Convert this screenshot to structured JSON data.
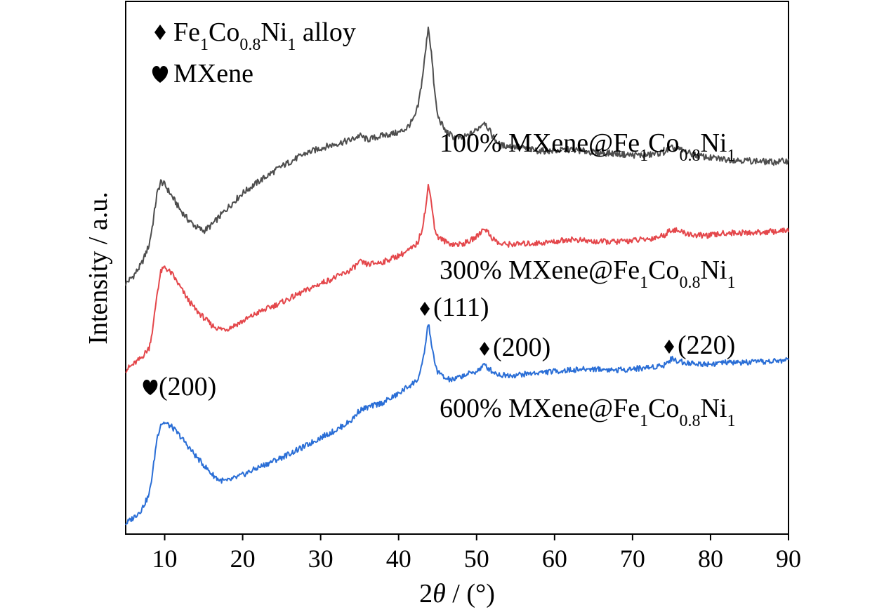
{
  "chart_data": {
    "type": "line",
    "xlabel": "2θ / (°)",
    "ylabel": "Intensity / a.u.",
    "xlim": [
      5,
      90
    ],
    "x_ticks": [
      10,
      20,
      30,
      40,
      50,
      60,
      70,
      80,
      90
    ],
    "y_ticks_shown": false,
    "grid": false,
    "legend": {
      "placement": "top-left",
      "entries": [
        {
          "symbol": "diamond",
          "label": "Fe1Co0.8Ni1 alloy"
        },
        {
          "symbol": "heart",
          "label": "MXene"
        }
      ]
    },
    "series": [
      {
        "name": "100% MXene@Fe1Co0.8Ni1",
        "color": "#4d4d4d",
        "x": [
          5,
          6,
          7,
          8,
          8.5,
          9,
          9.5,
          10,
          11,
          12,
          13,
          14,
          15,
          16,
          18,
          20,
          22,
          25,
          28,
          30,
          32,
          34,
          35,
          36,
          38,
          40,
          41,
          42,
          42.5,
          43,
          43.5,
          43.8,
          44.2,
          44.6,
          45,
          46,
          47,
          48,
          49,
          50,
          51,
          52,
          53,
          55,
          58,
          60,
          62,
          65,
          68,
          70,
          72,
          74,
          75,
          76,
          78,
          80,
          82,
          85,
          88,
          90
        ],
        "y": [
          0.05,
          0.6,
          1.4,
          2.8,
          4.4,
          6.4,
          7.3,
          7.1,
          6.2,
          5.3,
          4.6,
          4.1,
          3.8,
          4.2,
          5.4,
          6.5,
          7.3,
          8.4,
          9.3,
          9.7,
          10.0,
          10.3,
          10.6,
          10.3,
          10.6,
          10.8,
          11.1,
          11.8,
          12.7,
          14.5,
          16.8,
          18.4,
          16.5,
          13.8,
          12.0,
          10.9,
          10.5,
          10.4,
          10.6,
          11.0,
          11.6,
          10.6,
          9.9,
          9.8,
          9.5,
          9.5,
          9.6,
          9.4,
          9.3,
          9.2,
          9.2,
          9.4,
          9.7,
          9.6,
          9.2,
          9.0,
          8.9,
          8.8,
          8.7,
          8.8
        ]
      },
      {
        "name": "300% MXene@Fe1Co0.8Ni1",
        "color": "#e4474b",
        "x": [
          5,
          6,
          7,
          8,
          8.5,
          9,
          9.5,
          10,
          11,
          12,
          13,
          14,
          15,
          16,
          17,
          18,
          20,
          22,
          25,
          28,
          30,
          32,
          34,
          35,
          36,
          38,
          40,
          41,
          42,
          42.5,
          43,
          43.5,
          43.8,
          44.2,
          44.6,
          45,
          46,
          47,
          48,
          49,
          50,
          51,
          52,
          53,
          55,
          58,
          60,
          62,
          65,
          68,
          70,
          72,
          74,
          75,
          76,
          78,
          80,
          82,
          85,
          88,
          90
        ],
        "y": [
          0.05,
          0.5,
          1.0,
          1.8,
          3.4,
          6.0,
          7.8,
          8.2,
          7.6,
          6.6,
          5.6,
          4.8,
          4.2,
          3.6,
          3.3,
          3.3,
          3.9,
          4.6,
          5.4,
          6.3,
          6.9,
          7.4,
          8.0,
          8.6,
          8.4,
          8.6,
          9.1,
          9.4,
          9.8,
          10.2,
          11.2,
          13.0,
          14.6,
          13.5,
          11.3,
          10.6,
          10.2,
          10.0,
          10.0,
          10.2,
          10.6,
          11.3,
          10.5,
          10.0,
          10.0,
          10.1,
          10.2,
          10.4,
          10.2,
          10.2,
          10.3,
          10.4,
          10.7,
          11.2,
          11.0,
          10.7,
          10.7,
          10.9,
          10.9,
          11.0,
          11.1
        ]
      },
      {
        "name": "600% MXene@Fe1Co0.8Ni1",
        "color": "#2a6ed6",
        "x": [
          5,
          6,
          7,
          8,
          8.5,
          9,
          9.5,
          10,
          11,
          12,
          13,
          14,
          15,
          16,
          17,
          18,
          20,
          22,
          25,
          28,
          30,
          32,
          34,
          35,
          36,
          38,
          40,
          41,
          42,
          42.5,
          43,
          43.5,
          43.8,
          44.2,
          44.6,
          45,
          46,
          47,
          48,
          49,
          50,
          51,
          52,
          53,
          55,
          58,
          60,
          62,
          65,
          68,
          70,
          72,
          74,
          75,
          76,
          78,
          80,
          82,
          85,
          88,
          90
        ],
        "y": [
          0.1,
          0.6,
          1.2,
          2.4,
          4.4,
          6.9,
          8.1,
          8.2,
          7.8,
          7.1,
          6.3,
          5.5,
          4.8,
          4.1,
          3.6,
          3.5,
          4.0,
          4.6,
          5.4,
          6.3,
          7.0,
          7.6,
          8.4,
          9.2,
          9.4,
          9.8,
          10.5,
          11.0,
          11.4,
          11.7,
          12.7,
          14.7,
          16.2,
          14.6,
          13.0,
          12.3,
          11.7,
          11.6,
          11.9,
          12.1,
          12.3,
          12.8,
          12.3,
          12.0,
          12.0,
          12.2,
          12.3,
          12.4,
          12.5,
          12.4,
          12.5,
          12.6,
          12.8,
          13.3,
          13.1,
          12.9,
          12.9,
          13.0,
          13.0,
          13.1,
          13.2
        ]
      }
    ],
    "annotations": [
      {
        "symbol": "heart",
        "text": "(200)",
        "x": 9.5
      },
      {
        "symbol": "diamond",
        "text": "(111)",
        "x": 43.8
      },
      {
        "symbol": "diamond",
        "text": "(200)",
        "x": 51.2
      },
      {
        "symbol": "diamond",
        "text": "(220)",
        "x": 75.0
      }
    ]
  }
}
